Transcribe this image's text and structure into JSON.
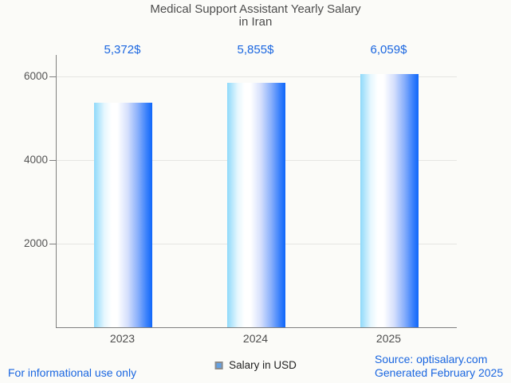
{
  "title": {
    "line1": "Medical Support Assistant Yearly Salary",
    "line2": "in Iran"
  },
  "chart_data": {
    "type": "bar",
    "title": "Medical Support Assistant Yearly Salary in Iran",
    "categories": [
      "2023",
      "2024",
      "2025"
    ],
    "values": [
      5372,
      5855,
      6059
    ],
    "value_labels": [
      "5,372$",
      "5,855$",
      "6,059$"
    ],
    "series": [
      {
        "name": "Salary in USD",
        "values": [
          5372,
          5855,
          6059
        ]
      }
    ],
    "y_ticks_top_to_bottom": [
      "6000",
      "4000",
      "2000"
    ],
    "ylim": [
      0,
      6514
    ],
    "xlabel": "",
    "ylabel": "",
    "grid": "horizontal",
    "legend_position": "bottom"
  },
  "legend": {
    "label": "Salary in USD",
    "marker_color": "#64a1e2"
  },
  "footer": {
    "left": "For informational use only",
    "source": "Source: optisalary.com",
    "generated": "Generated February 2025"
  },
  "colors": {
    "background": "#fbfbf8",
    "title_text": "#4d4d4d",
    "accent_blue_text": "#1a66e0",
    "axis": "#7f7f7f",
    "gridline": "#e6e6e3",
    "bar_gradient_left": "#8ed9fa",
    "bar_gradient_middle": "#ffffff",
    "bar_gradient_right": "#0f66fa"
  }
}
